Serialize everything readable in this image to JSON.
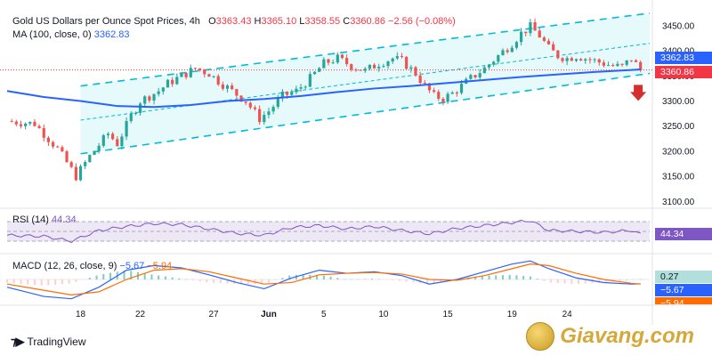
{
  "header": {
    "title": "Gold US Dollars per Ounce Spot Prices, 4h",
    "o_label": "O",
    "o": "3363.43",
    "h_label": "H",
    "h": "3365.10",
    "l_label": "L",
    "l": "3358.55",
    "c_label": "C",
    "c": "3360.86",
    "change": "−2.56 (−0.08%)",
    "ma_label": "MA (100, close, 0)",
    "ma_value": "3362.83",
    "rsi_label": "RSI (14)",
    "rsi_value": "44.34",
    "macd_label": "MACD (12, 26, close, 9)",
    "macd_value": "−5.67",
    "signal_value": "−5.94"
  },
  "tags": {
    "ma": "3362.83",
    "price": "3360.86",
    "rsi": "44.34",
    "hist": "0.27",
    "macd": "−5.67",
    "signal": "−5.94"
  },
  "brand": {
    "name": "TradingView",
    "watermark": "Giavang.com"
  },
  "colors": {
    "up": "#26a69a",
    "down": "#ef5350",
    "ma": "#2962ff",
    "channel": "#00bcd4",
    "channel_fill": "#e0f7fa",
    "rsi": "#7e57c2",
    "rsi_band": "#ede7f6",
    "macd": "#2962ff",
    "signal": "#ff6d00",
    "arrow": "#d32f2f"
  },
  "chart_data": {
    "type": "candlestick",
    "y_ticks": [
      "3450.00",
      "3400.00",
      "3350.00",
      "3300.00",
      "3250.00",
      "3200.00",
      "3150.00",
      "3100.00"
    ],
    "x_ticks": [
      "18",
      "22",
      "27",
      "Jun",
      "5",
      "10",
      "15",
      "19",
      "24"
    ],
    "ylim": [
      3090,
      3480
    ],
    "close_path": [
      [
        0,
        3260
      ],
      [
        6,
        3255
      ],
      [
        11,
        3205
      ],
      [
        15,
        3150
      ],
      [
        18,
        3190
      ],
      [
        22,
        3235
      ],
      [
        24,
        3215
      ],
      [
        27,
        3270
      ],
      [
        29,
        3300
      ],
      [
        31,
        3310
      ],
      [
        33,
        3320
      ],
      [
        35,
        3335
      ],
      [
        38,
        3350
      ],
      [
        41,
        3365
      ],
      [
        44,
        3355
      ],
      [
        46,
        3340
      ],
      [
        49,
        3320
      ],
      [
        52,
        3300
      ],
      [
        55,
        3265
      ],
      [
        57,
        3280
      ],
      [
        60,
        3310
      ],
      [
        63,
        3320
      ],
      [
        66,
        3345
      ],
      [
        69,
        3375
      ],
      [
        72,
        3385
      ],
      [
        75,
        3370
      ],
      [
        78,
        3360
      ],
      [
        81,
        3375
      ],
      [
        84,
        3385
      ],
      [
        86,
        3380
      ],
      [
        89,
        3355
      ],
      [
        91,
        3330
      ],
      [
        93,
        3310
      ],
      [
        95,
        3305
      ],
      [
        97,
        3315
      ],
      [
        99,
        3330
      ],
      [
        101,
        3345
      ],
      [
        104,
        3365
      ],
      [
        107,
        3390
      ],
      [
        110,
        3415
      ],
      [
        112,
        3435
      ],
      [
        114,
        3448
      ],
      [
        116,
        3430
      ],
      [
        118,
        3405
      ],
      [
        120,
        3390
      ],
      [
        122,
        3385
      ],
      [
        124,
        3390
      ],
      [
        126,
        3385
      ],
      [
        128,
        3380
      ],
      [
        130,
        3375
      ],
      [
        132,
        3370
      ],
      [
        134,
        3368
      ],
      [
        136,
        3385
      ],
      [
        138,
        3362
      ]
    ],
    "ma100_path": [
      [
        0,
        3320
      ],
      [
        8,
        3308
      ],
      [
        16,
        3300
      ],
      [
        24,
        3290
      ],
      [
        32,
        3288
      ],
      [
        40,
        3292
      ],
      [
        48,
        3300
      ],
      [
        56,
        3304
      ],
      [
        64,
        3310
      ],
      [
        72,
        3318
      ],
      [
        80,
        3325
      ],
      [
        88,
        3330
      ],
      [
        96,
        3336
      ],
      [
        104,
        3342
      ],
      [
        112,
        3348
      ],
      [
        120,
        3353
      ],
      [
        128,
        3358
      ],
      [
        136,
        3362
      ],
      [
        138,
        3363
      ]
    ],
    "channel": {
      "upper": [
        [
          16,
          3330
        ],
        [
          140,
          3475
        ]
      ],
      "lower": [
        [
          16,
          3195
        ],
        [
          140,
          3355
        ]
      ],
      "middle": [
        [
          16,
          3262
        ],
        [
          140,
          3415
        ]
      ]
    },
    "rsi": {
      "ylim": [
        10,
        90
      ],
      "overbought": 70,
      "middle": 50,
      "oversold": 30,
      "values": [
        [
          0,
          42
        ],
        [
          8,
          40
        ],
        [
          14,
          30
        ],
        [
          20,
          52
        ],
        [
          26,
          60
        ],
        [
          32,
          66
        ],
        [
          38,
          64
        ],
        [
          44,
          55
        ],
        [
          50,
          46
        ],
        [
          56,
          42
        ],
        [
          62,
          58
        ],
        [
          68,
          62
        ],
        [
          74,
          55
        ],
        [
          80,
          60
        ],
        [
          86,
          52
        ],
        [
          92,
          45
        ],
        [
          98,
          56
        ],
        [
          104,
          62
        ],
        [
          110,
          68
        ],
        [
          114,
          72
        ],
        [
          118,
          52
        ],
        [
          124,
          50
        ],
        [
          130,
          48
        ],
        [
          136,
          52
        ],
        [
          138,
          44
        ]
      ]
    },
    "macd": {
      "ylim": [
        -30,
        30
      ],
      "macd": [
        [
          0,
          -10
        ],
        [
          8,
          -22
        ],
        [
          14,
          -25
        ],
        [
          20,
          -10
        ],
        [
          26,
          12
        ],
        [
          32,
          18
        ],
        [
          38,
          15
        ],
        [
          44,
          6
        ],
        [
          50,
          -4
        ],
        [
          56,
          -12
        ],
        [
          62,
          2
        ],
        [
          68,
          12
        ],
        [
          74,
          8
        ],
        [
          80,
          10
        ],
        [
          86,
          5
        ],
        [
          92,
          -6
        ],
        [
          98,
          0
        ],
        [
          104,
          10
        ],
        [
          110,
          20
        ],
        [
          114,
          24
        ],
        [
          118,
          14
        ],
        [
          124,
          2
        ],
        [
          130,
          -4
        ],
        [
          136,
          -6
        ],
        [
          138,
          -5.67
        ]
      ],
      "signal": [
        [
          0,
          -6
        ],
        [
          8,
          -14
        ],
        [
          14,
          -20
        ],
        [
          20,
          -16
        ],
        [
          26,
          0
        ],
        [
          32,
          12
        ],
        [
          38,
          14
        ],
        [
          44,
          10
        ],
        [
          50,
          2
        ],
        [
          56,
          -6
        ],
        [
          62,
          -4
        ],
        [
          68,
          6
        ],
        [
          74,
          8
        ],
        [
          80,
          9
        ],
        [
          86,
          7
        ],
        [
          92,
          0
        ],
        [
          98,
          -1
        ],
        [
          104,
          5
        ],
        [
          110,
          14
        ],
        [
          114,
          20
        ],
        [
          118,
          18
        ],
        [
          124,
          8
        ],
        [
          130,
          0
        ],
        [
          136,
          -5
        ],
        [
          138,
          -5.94
        ]
      ]
    }
  }
}
